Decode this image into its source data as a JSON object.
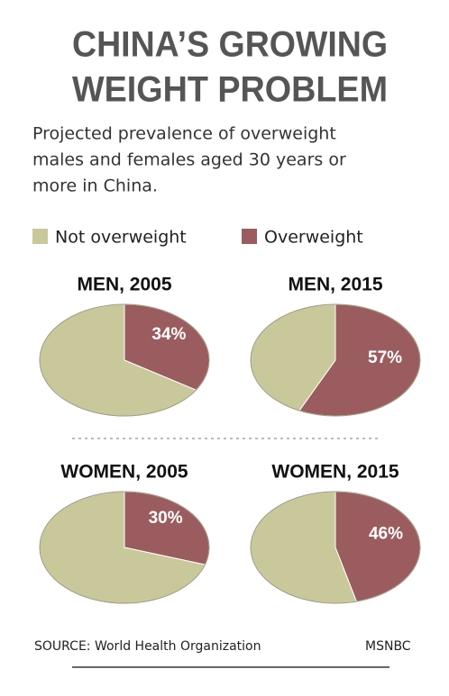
{
  "title": [
    "CHINA’S GROWING",
    "WEIGHT PROBLEM"
  ],
  "subtitle": [
    "Projected prevalence of overweight",
    "males and females aged 30 years or",
    "more in China."
  ],
  "source": "SOURCE: World Health Organization",
  "credit": "MSNBC",
  "chart_data": [
    {
      "type": "pie",
      "title": "MEN, 2005",
      "categories": [
        "Not overweight",
        "Overweight"
      ],
      "values": [
        66,
        34
      ],
      "value_labels": [
        null,
        "34%"
      ],
      "colors": [
        "#c9c89b",
        "#9b5c5f"
      ]
    },
    {
      "type": "pie",
      "title": "MEN, 2015",
      "categories": [
        "Not overweight",
        "Overweight"
      ],
      "values": [
        43,
        57
      ],
      "value_labels": [
        null,
        "57%"
      ],
      "colors": [
        "#c9c89b",
        "#9b5c5f"
      ]
    },
    {
      "type": "pie",
      "title": "WOMEN, 2005",
      "categories": [
        "Not overweight",
        "Overweight"
      ],
      "values": [
        70,
        30
      ],
      "value_labels": [
        null,
        "30%"
      ],
      "colors": [
        "#c9c89b",
        "#9b5c5f"
      ]
    },
    {
      "type": "pie",
      "title": "WOMEN, 2015",
      "categories": [
        "Not overweight",
        "Overweight"
      ],
      "values": [
        54,
        46
      ],
      "value_labels": [
        null,
        "46%"
      ],
      "colors": [
        "#c9c89b",
        "#9b5c5f"
      ]
    }
  ]
}
